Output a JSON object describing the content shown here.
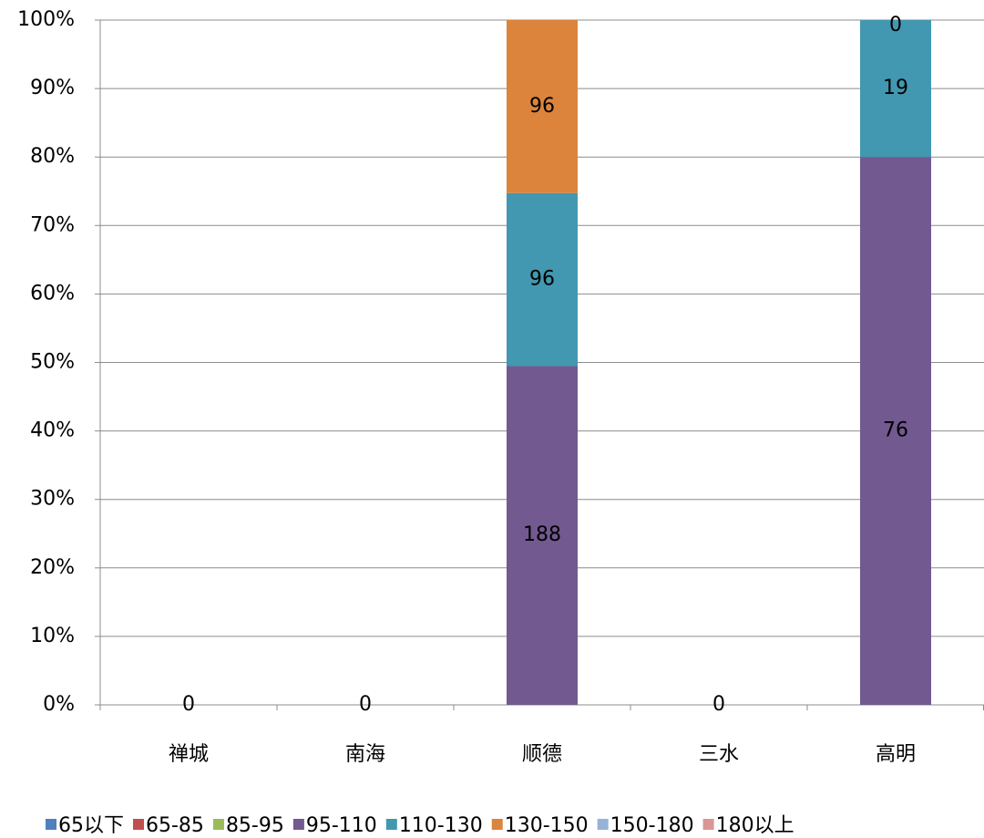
{
  "chart_data": {
    "type": "stacked_percent_bar",
    "categories": [
      "禅城",
      "南海",
      "顺德",
      "三水",
      "高明"
    ],
    "series": [
      {
        "name": "65以下",
        "color": "#4f81bd",
        "values": [
          null,
          null,
          null,
          null,
          null
        ]
      },
      {
        "name": "65-85",
        "color": "#c0504d",
        "values": [
          null,
          null,
          null,
          null,
          null
        ]
      },
      {
        "name": "85-95",
        "color": "#9bbb59",
        "values": [
          null,
          null,
          null,
          null,
          null
        ]
      },
      {
        "name": "95-110",
        "color": "#725990",
        "values": [
          0,
          0,
          188,
          0,
          76
        ]
      },
      {
        "name": "110-130",
        "color": "#4298b0",
        "values": [
          null,
          null,
          96,
          null,
          19
        ]
      },
      {
        "name": "130-150",
        "color": "#dc843c",
        "values": [
          null,
          null,
          96,
          null,
          0
        ]
      },
      {
        "name": "150-180",
        "color": "#95b3d7",
        "values": [
          null,
          null,
          null,
          null,
          null
        ]
      },
      {
        "name": "180以上",
        "color": "#d99694",
        "values": [
          null,
          null,
          null,
          null,
          null
        ]
      }
    ],
    "ylim": [
      0,
      100
    ],
    "yticks": [
      {
        "value": 0,
        "label": "0%"
      },
      {
        "value": 10,
        "label": "10%"
      },
      {
        "value": 20,
        "label": "20%"
      },
      {
        "value": 30,
        "label": "30%"
      },
      {
        "value": 40,
        "label": "40%"
      },
      {
        "value": 50,
        "label": "50%"
      },
      {
        "value": 60,
        "label": "60%"
      },
      {
        "value": 70,
        "label": "70%"
      },
      {
        "value": 80,
        "label": "80%"
      },
      {
        "value": 90,
        "label": "90%"
      },
      {
        "value": 100,
        "label": "100%"
      }
    ],
    "grid": true
  }
}
